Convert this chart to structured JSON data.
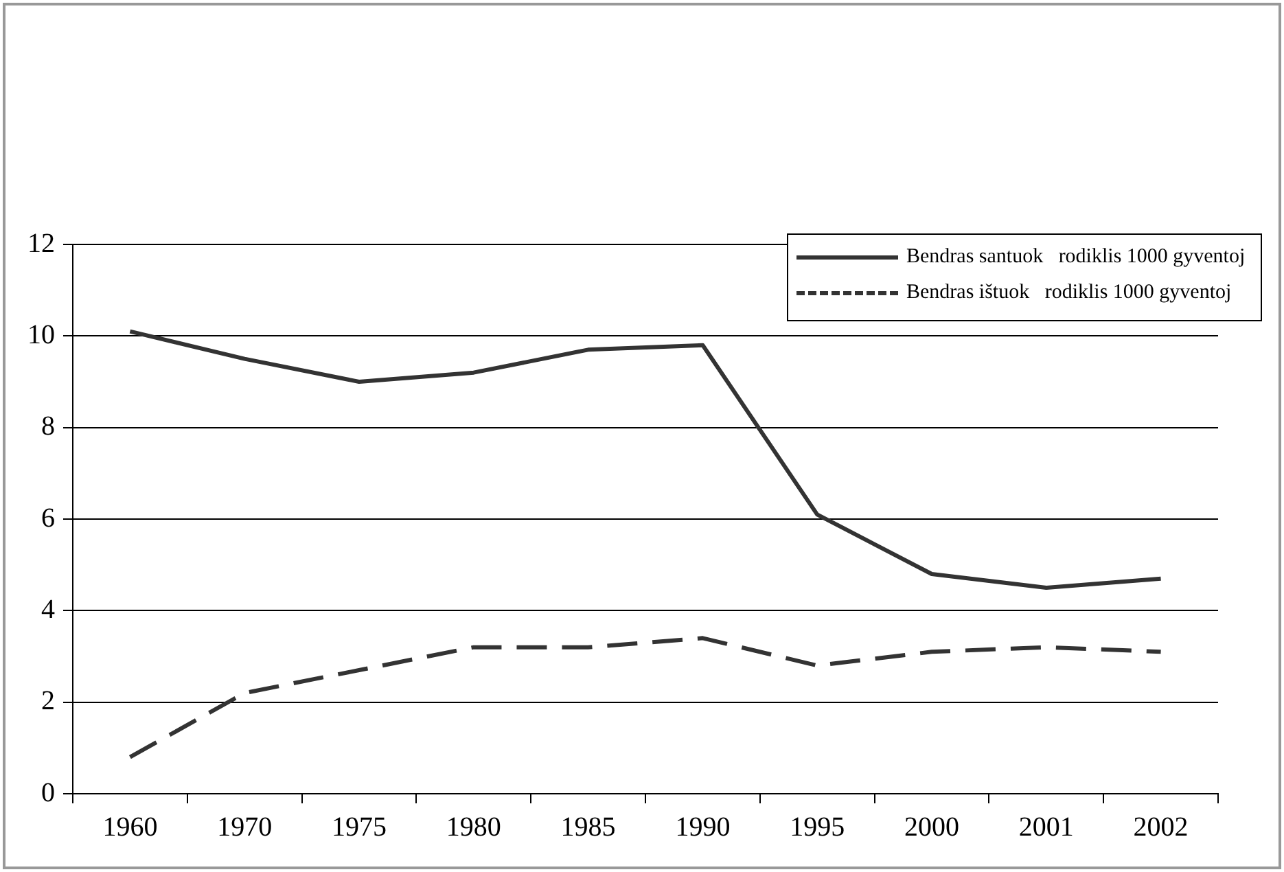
{
  "chart_data": {
    "type": "line",
    "categories": [
      "1960",
      "1970",
      "1975",
      "1980",
      "1985",
      "1990",
      "1995",
      "2000",
      "2001",
      "2002"
    ],
    "series": [
      {
        "name": "Bendras santuok   rodiklis 1000 gyventoj",
        "color": "#333333",
        "line_style": "solid",
        "values": [
          10.1,
          9.5,
          9.0,
          9.2,
          9.7,
          9.8,
          6.1,
          4.8,
          4.5,
          4.7
        ]
      },
      {
        "name": "Bendras ištuok   rodiklis 1000 gyventoj",
        "color": "#333333",
        "line_style": "dashed",
        "values": [
          0.8,
          2.2,
          2.7,
          3.2,
          3.2,
          3.4,
          2.8,
          3.1,
          3.2,
          3.1
        ]
      }
    ],
    "ylim": [
      0,
      12
    ],
    "yticks": [
      0,
      2,
      4,
      6,
      8,
      10,
      12
    ],
    "grid": "y",
    "legend": "top right",
    "marker": "none"
  }
}
